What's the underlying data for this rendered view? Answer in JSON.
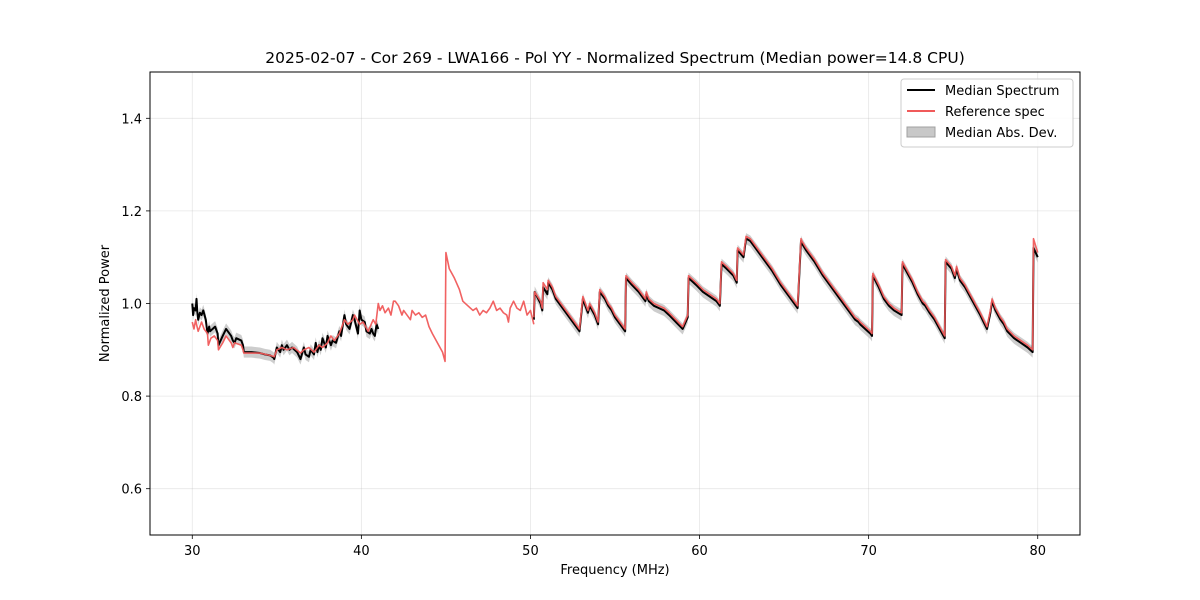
{
  "chart_data": {
    "type": "line",
    "title": "2025-02-07 - Cor 269 - LWA166 - Pol YY - Normalized Spectrum (Median power=14.8 CPU)",
    "xlabel": "Frequency (MHz)",
    "ylabel": "Normalized Power",
    "xlim": [
      27.5,
      82.5
    ],
    "ylim": [
      0.5,
      1.5
    ],
    "xticks": [
      30,
      40,
      50,
      60,
      70,
      80
    ],
    "yticks": [
      0.6,
      0.8,
      1.0,
      1.2,
      1.4
    ],
    "xtick_labels": [
      "30",
      "40",
      "50",
      "60",
      "70",
      "80"
    ],
    "ytick_labels": [
      "0.6",
      "0.8",
      "1.0",
      "1.2",
      "1.4"
    ],
    "grid": true,
    "legend_position": "top-right",
    "series": [
      {
        "name": "Median Spectrum",
        "color": "#000000",
        "segments": [
          {
            "x": [
              30.0,
              30.05,
              30.1,
              30.2,
              30.25,
              30.3,
              30.35,
              30.45,
              30.55,
              30.65,
              30.8,
              30.9,
              31.0,
              31.05,
              31.2,
              31.35,
              31.5,
              31.55,
              31.8,
              32.0,
              32.3,
              32.4,
              32.5,
              32.6,
              32.9,
              33.0,
              33.05,
              33.5,
              34.0,
              34.3,
              34.6,
              34.8,
              34.85,
              35.0,
              35.2,
              35.3,
              35.4,
              35.5,
              35.6,
              35.75,
              35.9,
              36.2,
              36.4,
              36.6,
              36.7,
              36.9,
              37.0,
              37.2,
              37.3,
              37.4,
              37.5,
              37.6,
              37.7,
              37.9,
              38.0,
              38.2,
              38.3,
              38.5,
              38.7,
              38.8,
              39.0,
              39.1,
              39.3,
              39.5,
              39.6,
              39.8,
              39.9,
              40.0,
              40.2,
              40.3,
              40.5,
              40.6,
              40.7,
              40.8,
              40.9,
              41.0
            ],
            "y": [
              1.0,
              0.975,
              0.99,
              0.985,
              1.01,
              0.98,
              0.965,
              0.98,
              0.975,
              0.985,
              0.965,
              0.935,
              0.95,
              0.94,
              0.945,
              0.95,
              0.935,
              0.91,
              0.93,
              0.945,
              0.93,
              0.92,
              0.915,
              0.925,
              0.92,
              0.91,
              0.895,
              0.895,
              0.893,
              0.89,
              0.888,
              0.883,
              0.88,
              0.905,
              0.895,
              0.91,
              0.9,
              0.905,
              0.91,
              0.9,
              0.905,
              0.895,
              0.88,
              0.905,
              0.89,
              0.885,
              0.9,
              0.89,
              0.915,
              0.895,
              0.91,
              0.9,
              0.925,
              0.905,
              0.93,
              0.91,
              0.92,
              0.915,
              0.94,
              0.93,
              0.975,
              0.955,
              0.945,
              0.975,
              0.965,
              0.935,
              0.985,
              0.965,
              0.96,
              0.94,
              0.935,
              0.945,
              0.935,
              0.93,
              0.955,
              0.945
            ]
          },
          {
            "x": [
              50.2,
              50.25,
              50.6,
              50.7,
              50.75,
              51.0,
              51.05,
              51.3,
              51.5,
              51.8,
              52.2,
              52.6,
              52.9,
              53.1,
              53.3,
              53.4,
              53.5,
              53.8,
              54.0,
              54.1,
              54.4,
              54.6,
              54.8,
              55.0,
              55.3,
              55.6,
              55.65,
              56.0,
              56.4,
              56.8,
              56.85,
              57.0,
              57.3,
              57.6,
              57.9,
              58.2,
              58.6,
              59.0,
              59.3,
              59.35,
              59.8,
              60.2,
              60.6,
              61.0,
              61.2,
              61.3,
              61.6,
              62.0,
              62.2,
              62.25,
              62.6,
              62.75,
              63.0,
              63.3,
              63.8,
              64.3,
              64.8,
              65.3,
              65.8,
              66.0,
              66.05,
              66.3,
              66.8,
              67.3,
              67.8,
              68.3,
              68.8,
              69.0,
              69.2,
              69.4,
              69.5,
              69.8,
              70.1,
              70.2,
              70.25,
              70.6,
              70.9,
              71.2,
              71.5,
              71.95,
              72.0,
              72.3,
              72.6,
              72.9,
              73.2,
              73.35,
              73.6,
              73.9,
              74.2,
              74.5,
              74.55,
              74.9,
              75.1,
              75.2,
              75.4,
              75.7,
              76.0,
              76.3,
              76.6,
              76.8,
              77.0,
              77.2,
              77.3,
              77.5,
              77.8,
              78.0,
              78.2,
              78.6,
              79.0,
              79.4,
              79.7,
              79.75,
              80.0
            ],
            "y": [
              0.965,
              1.025,
              1.0,
              0.985,
              1.035,
              1.02,
              1.045,
              1.03,
              1.01,
              0.995,
              0.975,
              0.955,
              0.94,
              1.01,
              0.99,
              0.98,
              0.995,
              0.975,
              0.955,
              1.025,
              1.01,
              0.995,
              0.985,
              0.97,
              0.955,
              0.94,
              1.055,
              1.04,
              1.025,
              1.005,
              1.02,
              1.005,
              0.995,
              0.99,
              0.985,
              0.975,
              0.96,
              0.945,
              0.97,
              1.055,
              1.04,
              1.025,
              1.015,
              1.005,
              0.995,
              1.085,
              1.075,
              1.06,
              1.045,
              1.115,
              1.1,
              1.14,
              1.135,
              1.12,
              1.095,
              1.07,
              1.04,
              1.015,
              0.99,
              1.135,
              1.13,
              1.115,
              1.09,
              1.06,
              1.035,
              1.01,
              0.985,
              0.975,
              0.965,
              0.96,
              0.955,
              0.945,
              0.935,
              0.93,
              1.06,
              1.035,
              1.01,
              0.995,
              0.985,
              0.975,
              1.085,
              1.065,
              1.045,
              1.02,
              1.0,
              0.995,
              0.98,
              0.965,
              0.945,
              0.925,
              1.09,
              1.075,
              1.055,
              1.075,
              1.05,
              1.035,
              1.015,
              0.995,
              0.975,
              0.96,
              0.945,
              0.98,
              1.005,
              0.985,
              0.965,
              0.955,
              0.94,
              0.925,
              0.915,
              0.905,
              0.895,
              1.12,
              1.1
            ]
          }
        ]
      },
      {
        "name": "Reference spec",
        "color": "#f05a5a",
        "segments": [
          {
            "x": [
              30.0,
              30.1,
              30.2,
              30.25,
              30.35,
              30.5,
              30.55,
              30.7,
              30.9,
              30.95,
              31.1,
              31.3,
              31.5,
              31.55,
              31.8,
              32.0,
              32.3,
              32.4,
              32.5,
              32.9,
              33.0,
              33.05,
              34.0,
              34.6,
              34.85,
              35.0,
              35.3,
              35.6,
              36.0,
              36.4,
              36.6,
              36.9,
              37.2,
              37.5,
              37.7,
              38.0,
              38.2,
              38.4,
              38.7,
              38.8,
              39.0,
              39.2,
              39.5,
              39.6,
              39.9,
              40.1,
              40.4,
              40.7,
              40.85,
              41.0,
              41.1,
              41.25,
              41.4,
              41.6,
              41.75,
              41.9,
              42.0,
              42.2,
              42.4,
              42.5,
              42.7,
              42.9,
              43.0,
              43.2,
              43.4,
              43.6,
              43.8,
              44.0,
              44.2,
              44.5,
              44.8,
              44.95,
              45.0,
              45.2,
              45.5,
              45.8,
              46.0,
              46.3,
              46.6,
              46.8,
              47.0,
              47.2,
              47.4,
              47.6,
              47.8,
              48.0,
              48.2,
              48.4,
              48.6,
              48.7,
              48.8,
              49.0,
              49.2,
              49.4,
              49.6,
              49.8,
              50.0,
              50.2
            ],
            "y": [
              0.96,
              0.945,
              0.965,
              0.955,
              0.94,
              0.955,
              0.96,
              0.945,
              0.935,
              0.91,
              0.925,
              0.93,
              0.92,
              0.9,
              0.915,
              0.93,
              0.915,
              0.905,
              0.915,
              0.91,
              0.9,
              0.893,
              0.893,
              0.888,
              0.885,
              0.9,
              0.905,
              0.9,
              0.905,
              0.893,
              0.9,
              0.905,
              0.895,
              0.91,
              0.905,
              0.915,
              0.93,
              0.92,
              0.935,
              0.945,
              0.965,
              0.955,
              0.965,
              0.975,
              0.955,
              0.96,
              0.94,
              0.965,
              0.955,
              1.0,
              0.985,
              0.995,
              0.98,
              0.99,
              0.975,
              1.005,
              1.005,
              0.995,
              0.975,
              0.985,
              0.975,
              0.965,
              0.985,
              0.975,
              0.98,
              0.97,
              0.975,
              0.95,
              0.935,
              0.915,
              0.895,
              0.875,
              1.11,
              1.075,
              1.055,
              1.03,
              1.005,
              0.995,
              0.985,
              0.99,
              0.975,
              0.985,
              0.98,
              0.99,
              1.005,
              0.985,
              0.99,
              0.98,
              0.975,
              0.96,
              0.99,
              1.005,
              0.99,
              0.985,
              1.005,
              0.975,
              0.985,
              0.955
            ]
          },
          {
            "x": [
              50.2,
              50.25,
              50.6,
              50.7,
              50.75,
              51.0,
              51.05,
              51.3,
              51.5,
              51.8,
              52.2,
              52.6,
              52.9,
              53.1,
              53.3,
              53.4,
              53.5,
              53.8,
              54.0,
              54.1,
              54.4,
              54.6,
              54.8,
              55.0,
              55.3,
              55.6,
              55.65,
              56.0,
              56.4,
              56.8,
              56.85,
              57.0,
              57.3,
              57.6,
              57.9,
              58.2,
              58.6,
              59.0,
              59.3,
              59.35,
              59.8,
              60.2,
              60.6,
              61.0,
              61.2,
              61.3,
              61.6,
              62.0,
              62.2,
              62.25,
              62.6,
              62.75,
              63.0,
              63.3,
              63.8,
              64.3,
              64.8,
              65.3,
              65.8,
              66.0,
              66.05,
              66.3,
              66.8,
              67.3,
              67.8,
              68.3,
              68.8,
              69.0,
              69.2,
              69.4,
              69.5,
              69.8,
              70.1,
              70.2,
              70.25,
              70.6,
              70.9,
              71.2,
              71.5,
              71.95,
              72.0,
              72.3,
              72.6,
              72.9,
              73.2,
              73.35,
              73.6,
              73.9,
              74.2,
              74.5,
              74.55,
              74.9,
              75.1,
              75.2,
              75.4,
              75.7,
              76.0,
              76.3,
              76.6,
              76.8,
              77.0,
              77.2,
              77.3,
              77.5,
              77.8,
              78.0,
              78.2,
              78.6,
              79.0,
              79.4,
              79.7,
              79.75,
              80.0
            ],
            "y": [
              0.97,
              1.025,
              1.005,
              0.99,
              1.045,
              1.03,
              1.05,
              1.035,
              1.015,
              1.0,
              0.98,
              0.96,
              0.945,
              1.015,
              0.995,
              0.985,
              1.0,
              0.98,
              0.96,
              1.03,
              1.015,
              1.0,
              0.99,
              0.975,
              0.96,
              0.945,
              1.06,
              1.045,
              1.03,
              1.01,
              1.025,
              1.01,
              1.0,
              0.995,
              0.99,
              0.98,
              0.965,
              0.95,
              0.975,
              1.06,
              1.045,
              1.03,
              1.02,
              1.01,
              1.0,
              1.09,
              1.08,
              1.065,
              1.05,
              1.12,
              1.105,
              1.145,
              1.14,
              1.125,
              1.1,
              1.075,
              1.045,
              1.02,
              0.995,
              1.14,
              1.135,
              1.12,
              1.095,
              1.065,
              1.04,
              1.015,
              0.99,
              0.98,
              0.97,
              0.965,
              0.96,
              0.95,
              0.94,
              0.935,
              1.065,
              1.04,
              1.015,
              1.0,
              0.99,
              0.98,
              1.09,
              1.07,
              1.05,
              1.025,
              1.005,
              1.0,
              0.985,
              0.97,
              0.95,
              0.93,
              1.095,
              1.08,
              1.06,
              1.08,
              1.055,
              1.04,
              1.02,
              1.0,
              0.98,
              0.965,
              0.95,
              0.985,
              1.01,
              0.99,
              0.97,
              0.96,
              0.945,
              0.93,
              0.92,
              0.91,
              0.9,
              1.14,
              1.11
            ]
          }
        ]
      }
    ],
    "mad": {
      "name": "Median Abs. Dev.",
      "color": "#c8c8c8",
      "width": 0.012
    },
    "legend": {
      "median_label": "Median Spectrum",
      "reference_label": "Reference spec",
      "mad_label": "Median Abs. Dev."
    }
  }
}
